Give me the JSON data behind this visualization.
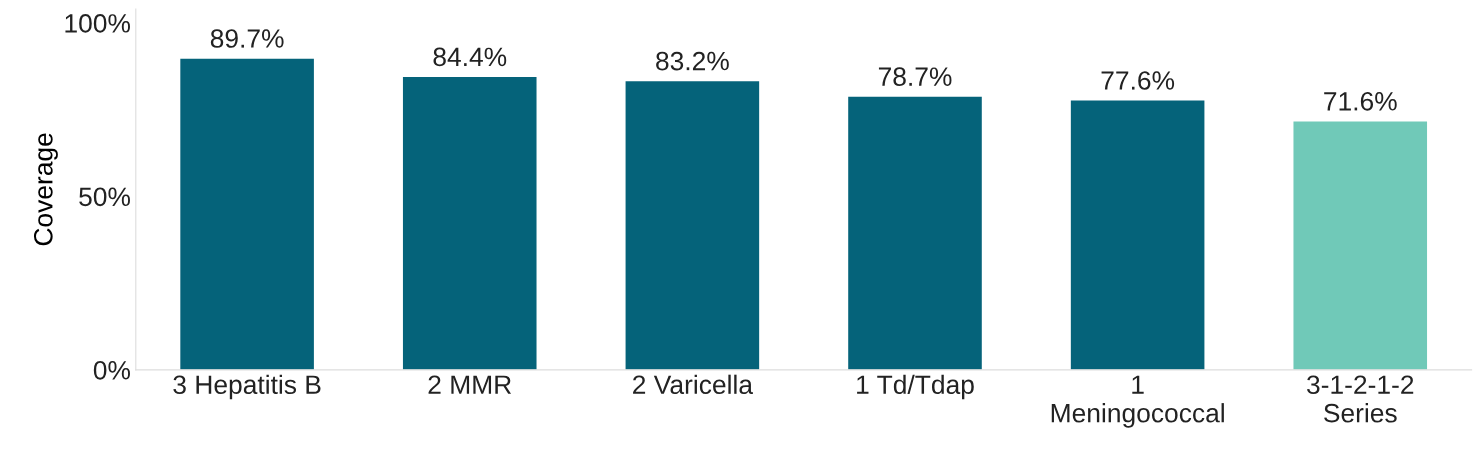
{
  "chart_data": {
    "type": "bar",
    "ylabel": "Coverage",
    "categories": [
      "3 Hepatitis B",
      "2 MMR",
      "2 Varicella",
      "1 Td/Tdap",
      "1\nMeningococcal",
      "3-1-2-1-2\nSeries"
    ],
    "values": [
      89.7,
      84.4,
      83.2,
      78.7,
      77.6,
      71.6
    ],
    "colors": [
      "#05637a",
      "#05637a",
      "#05637a",
      "#05637a",
      "#05637a",
      "#70c9b8"
    ],
    "value_labels": [
      "89.7%",
      "84.4%",
      "83.2%",
      "78.7%",
      "77.6%",
      "71.6%"
    ],
    "ylim": [
      0,
      104
    ],
    "yticks": [
      {
        "value": 0,
        "label": "0%"
      },
      {
        "value": 50,
        "label": "50%"
      },
      {
        "value": 100,
        "label": "100%"
      }
    ],
    "grid": false
  }
}
